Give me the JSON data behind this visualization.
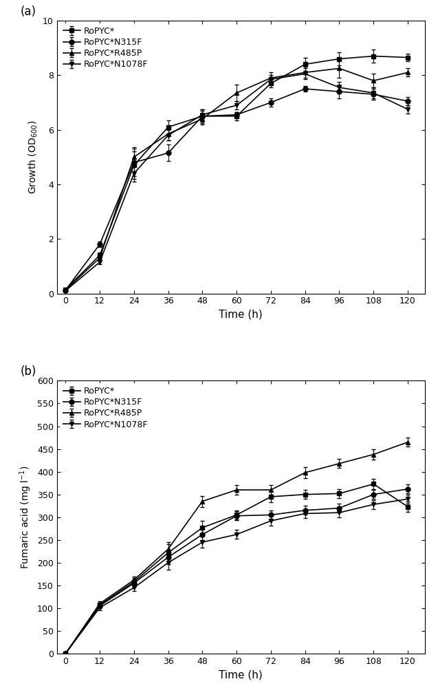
{
  "time": [
    0,
    12,
    24,
    36,
    48,
    60,
    72,
    84,
    96,
    108,
    120
  ],
  "panel_a": {
    "title_label": "(a)",
    "ylabel": "Growth (OD$_{600}$)",
    "xlabel": "Time (h)",
    "ylim": [
      0,
      10
    ],
    "yticks": [
      0,
      2,
      4,
      6,
      8,
      10
    ],
    "series": {
      "RoPYC*": {
        "y": [
          0.15,
          1.4,
          4.7,
          6.1,
          6.5,
          6.5,
          7.7,
          8.4,
          8.6,
          8.7,
          8.65
        ],
        "yerr": [
          0.05,
          0.1,
          0.5,
          0.25,
          0.25,
          0.15,
          0.15,
          0.25,
          0.25,
          0.25,
          0.15
        ],
        "marker": "s",
        "color": "#000000"
      },
      "RoPYC*N315F": {
        "y": [
          0.12,
          1.8,
          4.8,
          5.15,
          6.5,
          6.55,
          7.0,
          7.5,
          7.4,
          7.3,
          7.05
        ],
        "yerr": [
          0.05,
          0.1,
          0.5,
          0.3,
          0.2,
          0.1,
          0.15,
          0.1,
          0.25,
          0.2,
          0.15
        ],
        "marker": "o",
        "color": "#000000"
      },
      "RoPYC*R485P": {
        "y": [
          0.13,
          1.3,
          5.0,
          5.85,
          6.4,
          7.35,
          7.9,
          8.1,
          8.25,
          7.8,
          8.1
        ],
        "yerr": [
          0.05,
          0.08,
          0.35,
          0.25,
          0.2,
          0.3,
          0.2,
          0.2,
          0.35,
          0.25,
          0.15
        ],
        "marker": "^",
        "color": "#000000"
      },
      "RoPYC*N1078F": {
        "y": [
          0.1,
          1.15,
          4.4,
          5.8,
          6.55,
          6.9,
          7.85,
          8.05,
          7.55,
          7.35,
          6.75
        ],
        "yerr": [
          0.05,
          0.08,
          0.3,
          0.2,
          0.2,
          0.15,
          0.15,
          0.2,
          0.2,
          0.2,
          0.15
        ],
        "marker": "v",
        "color": "#000000"
      }
    }
  },
  "panel_b": {
    "title_label": "(b)",
    "ylabel": "Fumaric acid (mg l$^{-1}$)",
    "xlabel": "Time (h)",
    "ylim": [
      0,
      600
    ],
    "yticks": [
      0,
      50,
      100,
      150,
      200,
      250,
      300,
      350,
      400,
      450,
      500,
      550,
      600
    ],
    "series": {
      "RoPYC*": {
        "y": [
          0,
          107,
          158,
          222,
          277,
          305,
          345,
          350,
          352,
          373,
          323
        ],
        "yerr": [
          0,
          5,
          8,
          18,
          15,
          10,
          12,
          10,
          10,
          12,
          12
        ],
        "marker": "s",
        "color": "#000000"
      },
      "RoPYC*N315F": {
        "y": [
          0,
          105,
          155,
          212,
          262,
          303,
          305,
          315,
          320,
          350,
          362
        ],
        "yerr": [
          0,
          5,
          8,
          15,
          15,
          10,
          10,
          10,
          10,
          10,
          10
        ],
        "marker": "o",
        "color": "#000000"
      },
      "RoPYC*R485P": {
        "y": [
          0,
          110,
          162,
          230,
          335,
          360,
          360,
          398,
          418,
          438,
          465
        ],
        "yerr": [
          0,
          5,
          8,
          15,
          12,
          10,
          10,
          12,
          10,
          12,
          10
        ],
        "marker": "^",
        "color": "#000000"
      },
      "RoPYC*N1078F": {
        "y": [
          0,
          101,
          145,
          200,
          245,
          262,
          292,
          308,
          310,
          328,
          340
        ],
        "yerr": [
          0,
          5,
          8,
          15,
          12,
          10,
          10,
          10,
          10,
          10,
          10
        ],
        "marker": "v",
        "color": "#000000"
      }
    }
  },
  "line_color": "#000000",
  "markersize": 5,
  "linewidth": 1.2,
  "capsize": 2,
  "elinewidth": 0.8,
  "xlim": [
    -3,
    126
  ],
  "xticks": [
    0,
    12,
    24,
    36,
    48,
    60,
    72,
    84,
    96,
    108,
    120
  ]
}
